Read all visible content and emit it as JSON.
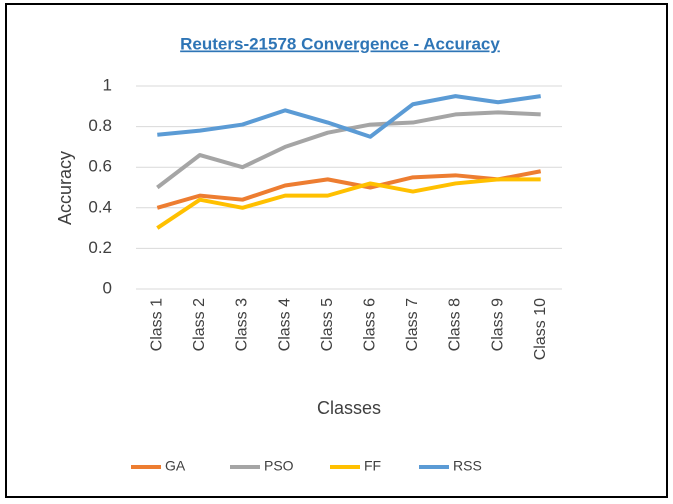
{
  "chart_data": {
    "type": "line",
    "title": "Reuters-21578 Convergence - Accuracy",
    "x_label": "Classes",
    "y_label": "Accuracy",
    "categories": [
      "Class 1",
      "Class 2",
      "Class 3",
      "Class 4",
      "Class 5",
      "Class 6",
      "Class 7",
      "Class 8",
      "Class 9",
      "Class 10"
    ],
    "series": [
      {
        "name": "GA",
        "color": "#ed7d31",
        "values": [
          0.4,
          0.46,
          0.44,
          0.51,
          0.54,
          0.5,
          0.55,
          0.56,
          0.54,
          0.58
        ]
      },
      {
        "name": "PSO",
        "color": "#a5a5a5",
        "values": [
          0.5,
          0.66,
          0.6,
          0.7,
          0.77,
          0.81,
          0.82,
          0.86,
          0.87,
          0.86
        ]
      },
      {
        "name": "FF",
        "color": "#ffc000",
        "values": [
          0.3,
          0.44,
          0.4,
          0.46,
          0.46,
          0.52,
          0.48,
          0.52,
          0.54,
          0.54
        ]
      },
      {
        "name": "RSS",
        "color": "#5b9bd5",
        "values": [
          0.76,
          0.78,
          0.81,
          0.88,
          0.82,
          0.75,
          0.91,
          0.95,
          0.92,
          0.95
        ]
      }
    ],
    "ylim": [
      0,
      1
    ],
    "yticks": [
      0,
      0.2,
      0.4,
      0.6,
      0.8,
      1
    ],
    "grid": true,
    "legend": "bottom"
  }
}
